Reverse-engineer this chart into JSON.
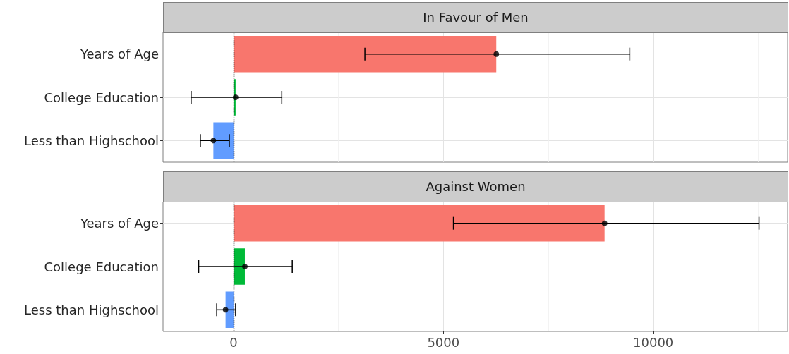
{
  "chart_data": [
    {
      "type": "bar",
      "orientation": "horizontal",
      "title": "In Favour of Men",
      "categories": [
        "Years of Age",
        "College Education",
        "Less than Highschool"
      ],
      "series": [
        {
          "colors": [
            "#f8766d",
            "#00ba38",
            "#619cff"
          ],
          "values": [
            6260,
            50,
            -480
          ],
          "errors": [
            [
              3130,
              9440
            ],
            [
              -1010,
              1150
            ],
            [
              -790,
              -100
            ]
          ]
        },
        {
          "type": "scatter",
          "color": "#000000",
          "marker": "circle",
          "values": [
            6260,
            50,
            -480
          ]
        }
      ],
      "xlim": [
        -1680,
        13200
      ],
      "xticks": [
        0,
        {
          "value": 2500,
          "label": null
        },
        5000,
        {
          "value": 7500,
          "label": null
        },
        10000,
        {
          "value": 12500,
          "label": null
        }
      ],
      "grid": true,
      "ref_lines": [
        {
          "axis": "x",
          "value": 0,
          "color": "#000000",
          "line_style": "dotted"
        }
      ],
      "tick_labels": "y"
    },
    {
      "type": "bar",
      "orientation": "horizontal",
      "title": "Against Women",
      "categories": [
        "Years of Age",
        "College Education",
        "Less than Highschool"
      ],
      "series": [
        {
          "colors": [
            "#f8766d",
            "#00ba38",
            "#619cff"
          ],
          "values": [
            8840,
            270,
            -190
          ],
          "errors": [
            [
              5240,
              12520
            ],
            [
              -830,
              1400
            ],
            [
              -400,
              50
            ]
          ]
        },
        {
          "type": "scatter",
          "color": "#000000",
          "marker": "circle",
          "values": [
            8840,
            270,
            -190
          ]
        }
      ],
      "xlim": [
        -1680,
        13200
      ],
      "xticks": [
        0,
        {
          "value": 2500,
          "label": null
        },
        5000,
        {
          "value": 7500,
          "label": null
        },
        10000,
        {
          "value": 12500,
          "label": null
        }
      ],
      "grid": true,
      "ref_lines": [
        {
          "axis": "x",
          "value": 0,
          "color": "#000000",
          "line_style": "dotted"
        }
      ]
    }
  ]
}
